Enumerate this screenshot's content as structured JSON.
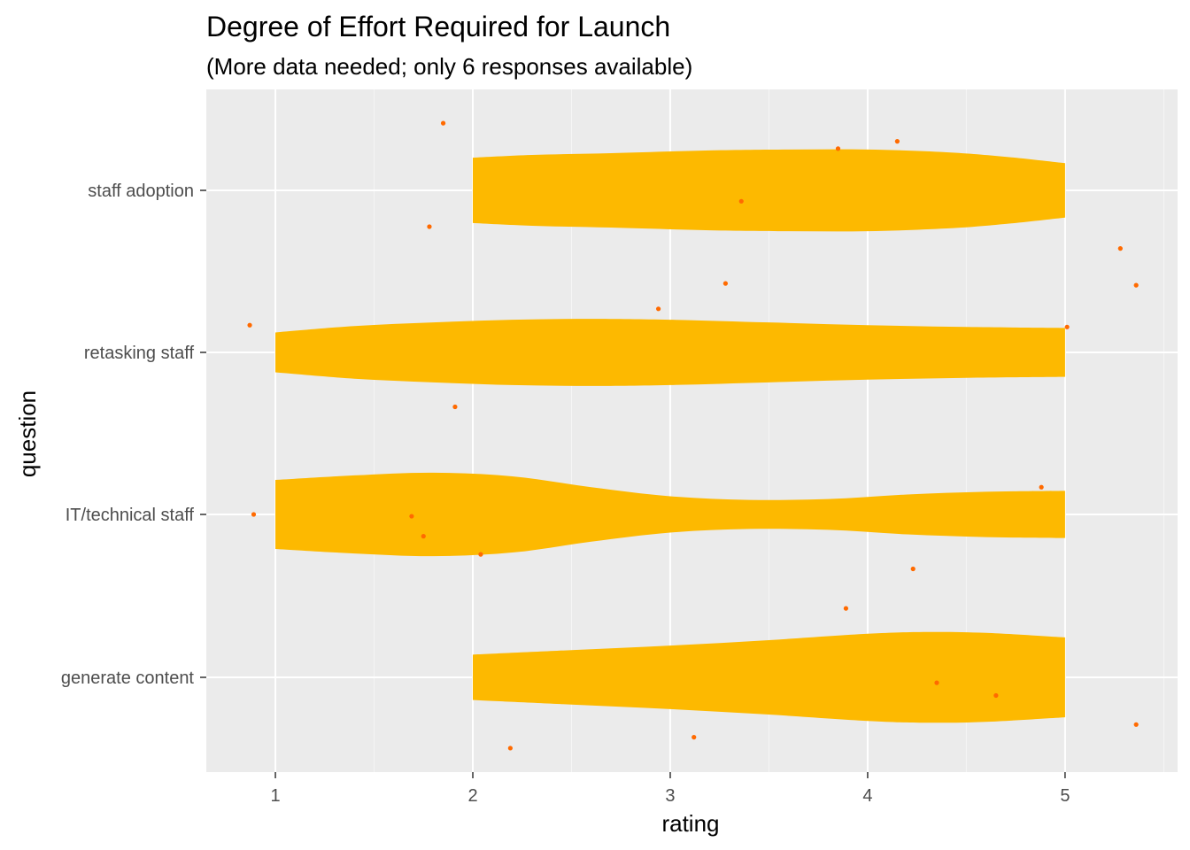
{
  "colors": {
    "panel_background": "#EBEBEB",
    "grid_major": "#FFFFFF",
    "grid_minor": "#F5F5F5",
    "violin_fill": "#FDB900",
    "point_color": "#FF6A00",
    "tick_color": "#333333",
    "tick_label_color": "#4D4D4D",
    "text_color": "#000000"
  },
  "chart_data": {
    "type": "violin",
    "title": "Degree of Effort Required for Launch",
    "subtitle": "(More data needed; only 6 responses available)",
    "xlabel": "rating",
    "ylabel": "question",
    "xlim": [
      0.65,
      5.57
    ],
    "x_ticks": [
      1,
      2,
      3,
      4,
      5
    ],
    "x_tick_labels": [
      "1",
      "2",
      "3",
      "4",
      "5"
    ],
    "grid": true,
    "categories": [
      "staff adoption",
      "retasking staff",
      "IT/technical staff",
      "generate content"
    ],
    "violins": [
      {
        "category": "staff adoption",
        "profile": [
          [
            2.0,
            0.36
          ],
          [
            2.3,
            0.39
          ],
          [
            2.7,
            0.41
          ],
          [
            3.2,
            0.44
          ],
          [
            3.6,
            0.45
          ],
          [
            4.0,
            0.45
          ],
          [
            4.4,
            0.42
          ],
          [
            4.7,
            0.37
          ],
          [
            5.0,
            0.3
          ]
        ]
      },
      {
        "category": "retasking staff",
        "profile": [
          [
            1.0,
            0.22
          ],
          [
            1.4,
            0.29
          ],
          [
            1.8,
            0.33
          ],
          [
            2.2,
            0.36
          ],
          [
            2.6,
            0.37
          ],
          [
            3.0,
            0.36
          ],
          [
            3.5,
            0.33
          ],
          [
            4.0,
            0.3
          ],
          [
            4.5,
            0.28
          ],
          [
            5.0,
            0.27
          ]
        ]
      },
      {
        "category": "IT/technical staff",
        "profile": [
          [
            1.0,
            0.38
          ],
          [
            1.4,
            0.43
          ],
          [
            1.8,
            0.46
          ],
          [
            2.2,
            0.42
          ],
          [
            2.6,
            0.3
          ],
          [
            3.0,
            0.2
          ],
          [
            3.4,
            0.16
          ],
          [
            3.8,
            0.17
          ],
          [
            4.2,
            0.22
          ],
          [
            4.6,
            0.25
          ],
          [
            5.0,
            0.26
          ]
        ]
      },
      {
        "category": "generate content",
        "profile": [
          [
            2.0,
            0.25
          ],
          [
            2.5,
            0.3
          ],
          [
            3.0,
            0.35
          ],
          [
            3.5,
            0.41
          ],
          [
            4.0,
            0.48
          ],
          [
            4.3,
            0.5
          ],
          [
            4.6,
            0.49
          ],
          [
            5.0,
            0.44
          ]
        ]
      }
    ],
    "points": [
      {
        "category": "staff adoption",
        "rating": 1.85,
        "offset": 0.37
      },
      {
        "category": "staff adoption",
        "rating": 3.85,
        "offset": 0.23
      },
      {
        "category": "staff adoption",
        "rating": 4.15,
        "offset": 0.27
      },
      {
        "category": "staff adoption",
        "rating": 3.36,
        "offset": -0.06
      },
      {
        "category": "staff adoption",
        "rating": 1.78,
        "offset": -0.2
      },
      {
        "category": "staff adoption",
        "rating": 5.28,
        "offset": -0.32
      },
      {
        "category": "retasking staff",
        "rating": 3.28,
        "offset": 0.38
      },
      {
        "category": "retasking staff",
        "rating": 5.36,
        "offset": 0.37
      },
      {
        "category": "retasking staff",
        "rating": 2.94,
        "offset": 0.24
      },
      {
        "category": "retasking staff",
        "rating": 0.87,
        "offset": 0.15
      },
      {
        "category": "retasking staff",
        "rating": 5.01,
        "offset": 0.14
      },
      {
        "category": "retasking staff",
        "rating": 1.91,
        "offset": -0.3
      },
      {
        "category": "IT/technical staff",
        "rating": 4.88,
        "offset": 0.15
      },
      {
        "category": "IT/technical staff",
        "rating": 0.89,
        "offset": 0.0
      },
      {
        "category": "IT/technical staff",
        "rating": 1.69,
        "offset": -0.01
      },
      {
        "category": "IT/technical staff",
        "rating": 1.75,
        "offset": -0.12
      },
      {
        "category": "IT/technical staff",
        "rating": 2.04,
        "offset": -0.22
      },
      {
        "category": "IT/technical staff",
        "rating": 4.23,
        "offset": -0.3
      },
      {
        "category": "generate content",
        "rating": 3.89,
        "offset": 0.38
      },
      {
        "category": "generate content",
        "rating": 4.35,
        "offset": -0.03
      },
      {
        "category": "generate content",
        "rating": 4.65,
        "offset": -0.1
      },
      {
        "category": "generate content",
        "rating": 5.36,
        "offset": -0.26
      },
      {
        "category": "generate content",
        "rating": 3.12,
        "offset": -0.33
      },
      {
        "category": "generate content",
        "rating": 2.19,
        "offset": -0.39
      }
    ]
  }
}
